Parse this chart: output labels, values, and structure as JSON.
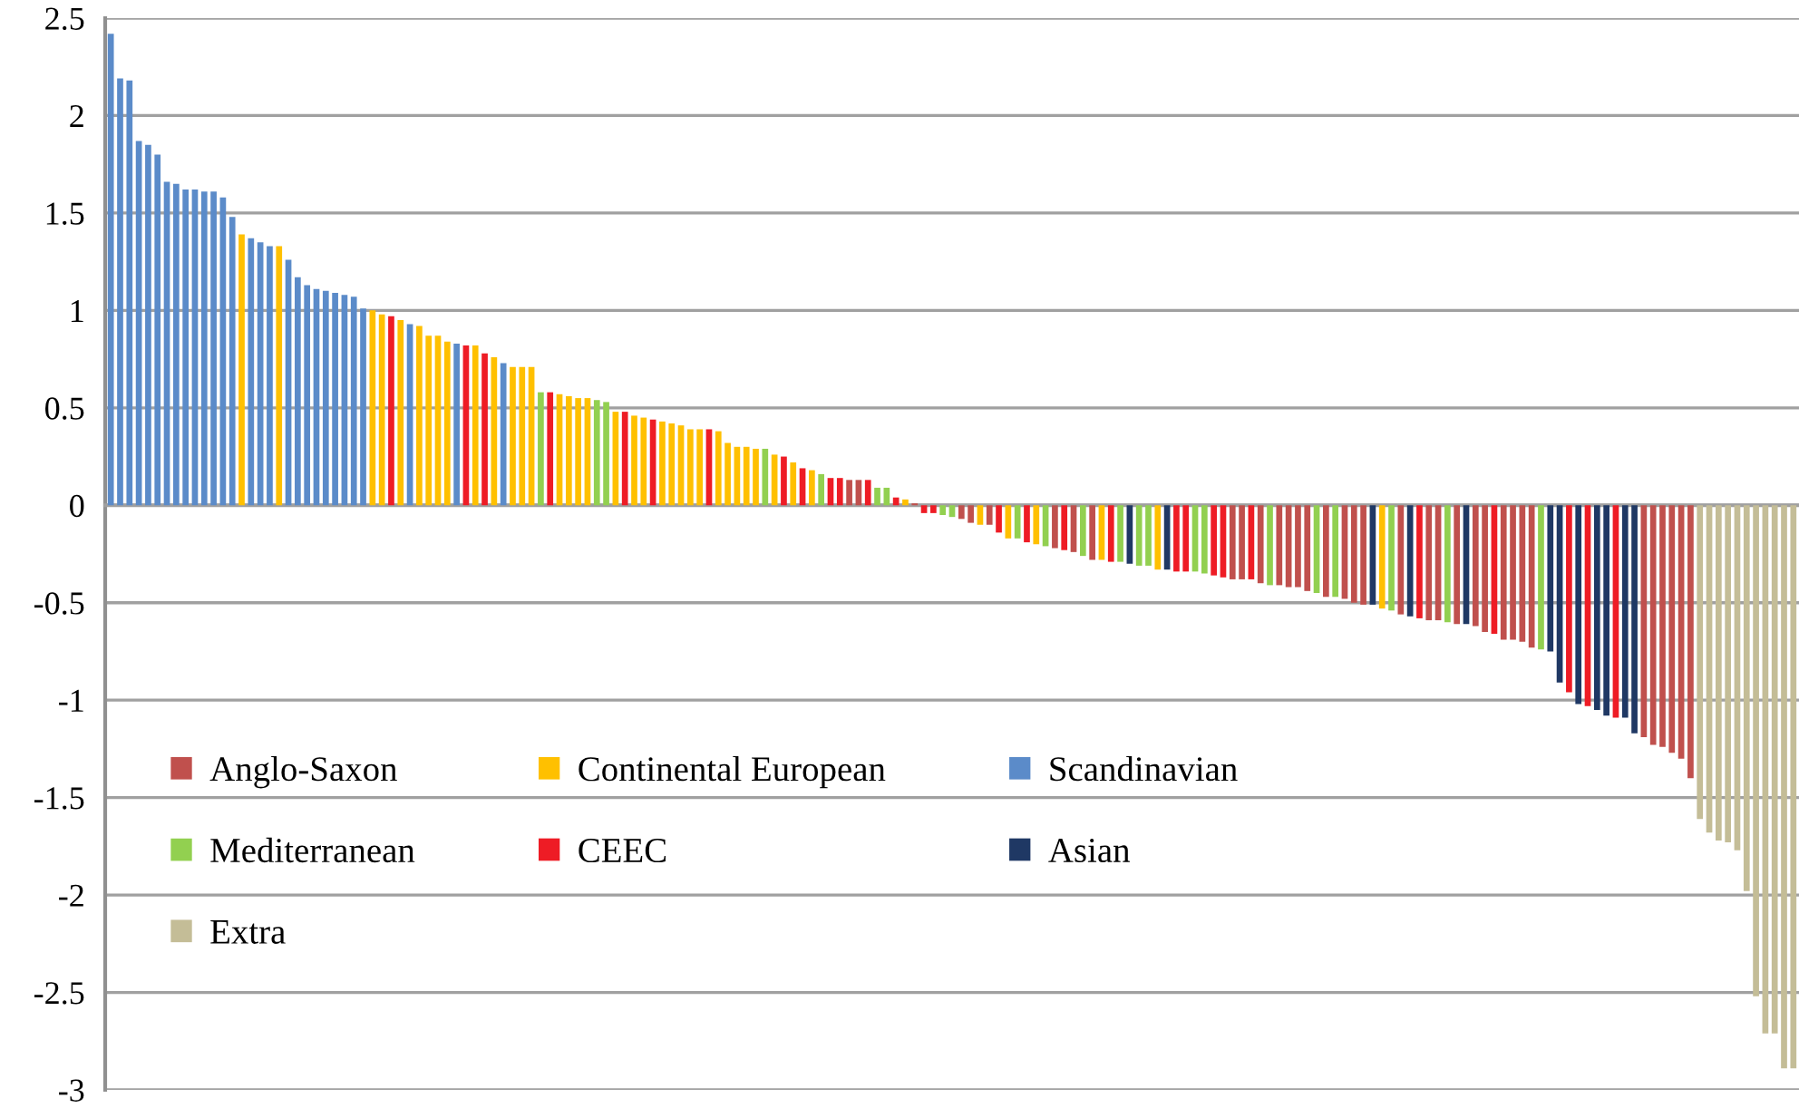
{
  "chart_data": {
    "type": "bar",
    "categories": [
      null,
      null,
      null,
      null,
      null,
      null,
      null,
      null,
      null,
      null,
      null,
      null,
      null,
      null,
      null,
      null,
      null,
      null,
      null,
      null,
      null,
      null,
      null,
      null,
      null,
      null,
      null,
      null,
      null,
      null,
      null,
      null,
      null,
      null,
      null,
      null,
      null,
      null,
      null,
      null,
      null,
      null,
      null,
      null,
      null,
      null,
      null,
      null,
      null,
      null,
      null,
      null,
      null,
      null,
      null,
      null,
      null,
      null,
      null,
      null,
      null,
      null,
      null,
      null,
      null,
      null,
      null,
      null,
      null,
      null,
      null,
      null,
      null,
      null,
      null,
      null,
      null,
      null,
      null,
      null,
      null,
      null,
      null,
      null,
      null,
      null,
      null,
      null,
      null,
      null,
      null,
      null,
      null,
      null,
      null,
      null,
      null,
      null,
      null,
      null,
      null,
      null,
      null,
      null,
      null,
      null,
      null,
      null,
      null,
      null,
      null,
      null,
      null,
      null,
      null,
      null,
      null,
      null,
      null,
      null,
      null,
      null,
      null,
      null,
      null,
      null,
      null,
      null,
      null,
      null,
      null,
      null,
      null,
      null,
      null,
      null,
      null,
      null,
      null,
      null,
      null,
      null,
      null,
      null,
      null,
      null,
      null,
      null,
      null,
      null,
      null,
      null,
      null,
      null,
      null,
      null,
      null,
      null,
      null,
      null,
      null,
      null,
      null,
      null,
      null,
      null,
      null,
      null,
      null,
      null,
      null,
      null,
      null,
      null,
      null,
      null,
      null,
      null,
      null,
      null,
      null
    ],
    "series": [
      {
        "name": "Anglo-Saxon",
        "color": "#c0504d",
        "values": [
          null,
          null,
          null,
          null,
          null,
          null,
          null,
          null,
          null,
          null,
          null,
          null,
          null,
          null,
          null,
          null,
          null,
          null,
          null,
          null,
          null,
          null,
          null,
          null,
          null,
          null,
          null,
          null,
          null,
          null,
          null,
          null,
          null,
          null,
          null,
          null,
          null,
          null,
          null,
          null,
          null,
          null,
          null,
          null,
          null,
          null,
          null,
          null,
          null,
          null,
          null,
          null,
          null,
          null,
          null,
          null,
          null,
          null,
          null,
          null,
          null,
          null,
          null,
          null,
          null,
          null,
          null,
          null,
          null,
          null,
          null,
          null,
          null,
          null,
          null,
          null,
          null,
          null,
          null,
          0.13,
          0.13,
          null,
          null,
          null,
          null,
          null,
          0.01,
          null,
          null,
          null,
          null,
          -0.07,
          -0.09,
          null,
          -0.1,
          null,
          null,
          null,
          null,
          null,
          null,
          -0.22,
          null,
          -0.24,
          null,
          -0.28,
          null,
          null,
          null,
          null,
          null,
          null,
          null,
          null,
          null,
          null,
          null,
          null,
          null,
          null,
          -0.38,
          -0.38,
          null,
          -0.4,
          null,
          -0.41,
          -0.42,
          -0.42,
          -0.44,
          null,
          -0.47,
          null,
          -0.48,
          -0.5,
          -0.51,
          null,
          null,
          null,
          -0.56,
          null,
          null,
          -0.59,
          -0.59,
          null,
          -0.61,
          null,
          -0.62,
          -0.65,
          null,
          -0.69,
          -0.69,
          -0.7,
          -0.73,
          null,
          null,
          null,
          null,
          null,
          null,
          null,
          null,
          null,
          null,
          null,
          -1.19,
          -1.23,
          -1.24,
          -1.27,
          -1.3,
          -1.4,
          null,
          null,
          null,
          null,
          null,
          null,
          null,
          null,
          null,
          null,
          null
        ]
      },
      {
        "name": "Continental European",
        "color": "#ffc000",
        "values": [
          null,
          null,
          null,
          null,
          null,
          null,
          null,
          null,
          null,
          null,
          null,
          null,
          null,
          null,
          1.39,
          null,
          null,
          null,
          1.33,
          null,
          null,
          null,
          null,
          null,
          null,
          null,
          null,
          null,
          1.0,
          0.98,
          null,
          0.95,
          null,
          0.92,
          0.87,
          0.87,
          0.84,
          null,
          null,
          0.82,
          null,
          0.76,
          null,
          0.71,
          0.71,
          0.71,
          null,
          null,
          0.57,
          0.56,
          0.55,
          0.55,
          null,
          null,
          0.48,
          null,
          0.46,
          0.45,
          null,
          0.43,
          0.42,
          0.41,
          0.39,
          0.39,
          null,
          0.38,
          0.32,
          0.3,
          0.3,
          0.29,
          null,
          0.26,
          null,
          0.22,
          null,
          0.18,
          null,
          null,
          null,
          null,
          null,
          null,
          null,
          null,
          null,
          0.03,
          null,
          null,
          null,
          null,
          null,
          null,
          null,
          -0.1,
          null,
          null,
          -0.17,
          null,
          null,
          -0.2,
          null,
          null,
          null,
          null,
          null,
          null,
          -0.28,
          null,
          null,
          null,
          null,
          null,
          -0.33,
          null,
          null,
          null,
          null,
          null,
          null,
          null,
          null,
          null,
          null,
          null,
          null,
          null,
          null,
          null,
          null,
          null,
          null,
          null,
          null,
          null,
          null,
          null,
          -0.53,
          null,
          null,
          null,
          null,
          null,
          null,
          null,
          null,
          null,
          null,
          null,
          null,
          null,
          null,
          null,
          null,
          null,
          null,
          null,
          null,
          null,
          null,
          null,
          null,
          null,
          null,
          null,
          null,
          null,
          null,
          null,
          null,
          null,
          null,
          null,
          null,
          null,
          null,
          null,
          null,
          null,
          null,
          null,
          null
        ]
      },
      {
        "name": "Scandinavian",
        "color": "#5b8bc9",
        "values": [
          2.42,
          2.19,
          2.18,
          1.87,
          1.85,
          1.8,
          1.66,
          1.65,
          1.62,
          1.62,
          1.61,
          1.61,
          1.58,
          1.48,
          null,
          1.37,
          1.35,
          1.33,
          null,
          1.26,
          1.17,
          1.13,
          1.11,
          1.1,
          1.09,
          1.08,
          1.07,
          1.01,
          null,
          null,
          null,
          null,
          0.93,
          null,
          null,
          null,
          null,
          0.83,
          null,
          null,
          null,
          null,
          0.73,
          null,
          null,
          null,
          null,
          null,
          null,
          null,
          null,
          null,
          null,
          null,
          null,
          null,
          null,
          null,
          null,
          null,
          null,
          null,
          null,
          null,
          null,
          null,
          null,
          null,
          null,
          null,
          null,
          null,
          null,
          null,
          null,
          null,
          null,
          null,
          null,
          null,
          null,
          null,
          null,
          null,
          null,
          null,
          null,
          null,
          null,
          null,
          null,
          null,
          null,
          null,
          null,
          null,
          null,
          null,
          null,
          null,
          null,
          null,
          null,
          null,
          null,
          null,
          null,
          null,
          null,
          null,
          null,
          null,
          null,
          null,
          null,
          null,
          null,
          null,
          null,
          null,
          null,
          null,
          null,
          null,
          null,
          null,
          null,
          null,
          null,
          null,
          null,
          null,
          null,
          null,
          null,
          null,
          null,
          null,
          null,
          null,
          null,
          null,
          null,
          null,
          null,
          null,
          null,
          null,
          null,
          null,
          null,
          null,
          null,
          null,
          null,
          null,
          null,
          null,
          null,
          null,
          null,
          null,
          null,
          null,
          null,
          null,
          null,
          null,
          null,
          null,
          null,
          null,
          null,
          null,
          null,
          null,
          null,
          null,
          null,
          null,
          null
        ]
      },
      {
        "name": "Mediterranean",
        "color": "#92d050",
        "values": [
          null,
          null,
          null,
          null,
          null,
          null,
          null,
          null,
          null,
          null,
          null,
          null,
          null,
          null,
          null,
          null,
          null,
          null,
          null,
          null,
          null,
          null,
          null,
          null,
          null,
          null,
          null,
          null,
          null,
          null,
          null,
          null,
          null,
          null,
          null,
          null,
          null,
          null,
          null,
          null,
          null,
          null,
          null,
          null,
          null,
          null,
          0.58,
          null,
          null,
          null,
          null,
          null,
          0.54,
          0.53,
          null,
          null,
          null,
          null,
          null,
          null,
          null,
          null,
          null,
          null,
          null,
          null,
          null,
          null,
          null,
          null,
          0.29,
          null,
          null,
          null,
          null,
          null,
          0.16,
          null,
          null,
          null,
          null,
          null,
          0.09,
          0.09,
          null,
          null,
          null,
          null,
          null,
          -0.05,
          -0.06,
          null,
          null,
          null,
          null,
          null,
          null,
          -0.17,
          null,
          null,
          -0.21,
          null,
          null,
          null,
          -0.26,
          null,
          null,
          null,
          -0.29,
          null,
          -0.31,
          -0.31,
          null,
          null,
          null,
          null,
          -0.34,
          -0.35,
          null,
          null,
          null,
          null,
          null,
          null,
          -0.41,
          null,
          null,
          null,
          null,
          -0.45,
          null,
          -0.47,
          null,
          null,
          null,
          null,
          null,
          -0.54,
          null,
          null,
          null,
          null,
          null,
          -0.6,
          null,
          null,
          null,
          null,
          null,
          null,
          null,
          null,
          null,
          -0.74,
          null,
          null,
          null,
          null,
          null,
          null,
          null,
          null,
          null,
          null,
          null,
          null,
          null,
          null,
          null,
          null,
          null,
          null,
          null,
          null,
          null,
          null,
          null,
          null,
          null,
          null,
          null
        ]
      },
      {
        "name": "CEEC",
        "color": "#ee1c25",
        "values": [
          null,
          null,
          null,
          null,
          null,
          null,
          null,
          null,
          null,
          null,
          null,
          null,
          null,
          null,
          null,
          null,
          null,
          null,
          null,
          null,
          null,
          null,
          null,
          null,
          null,
          null,
          null,
          null,
          null,
          null,
          0.97,
          null,
          null,
          null,
          null,
          null,
          null,
          null,
          0.82,
          null,
          0.78,
          null,
          null,
          null,
          null,
          null,
          null,
          0.58,
          null,
          null,
          null,
          null,
          null,
          null,
          null,
          0.48,
          null,
          null,
          0.44,
          null,
          null,
          null,
          null,
          null,
          0.39,
          null,
          null,
          null,
          null,
          null,
          null,
          null,
          0.25,
          null,
          0.19,
          null,
          null,
          0.14,
          0.14,
          null,
          null,
          0.13,
          null,
          null,
          0.04,
          null,
          null,
          -0.04,
          -0.04,
          null,
          null,
          null,
          null,
          null,
          null,
          -0.14,
          null,
          null,
          -0.19,
          null,
          null,
          null,
          -0.23,
          null,
          null,
          null,
          null,
          -0.29,
          null,
          null,
          null,
          null,
          null,
          null,
          -0.34,
          -0.34,
          null,
          null,
          -0.36,
          -0.37,
          null,
          null,
          -0.38,
          null,
          null,
          null,
          null,
          null,
          null,
          null,
          null,
          null,
          null,
          null,
          null,
          null,
          null,
          null,
          null,
          null,
          -0.58,
          null,
          null,
          null,
          null,
          null,
          null,
          null,
          -0.66,
          null,
          null,
          null,
          null,
          null,
          null,
          null,
          -0.96,
          null,
          -1.03,
          null,
          null,
          -1.09,
          null,
          null,
          null,
          null,
          null,
          null,
          null,
          null,
          null,
          null,
          null,
          null,
          null,
          null,
          null,
          null,
          null,
          null,
          null
        ]
      },
      {
        "name": "Asian",
        "color": "#1f3864",
        "values": [
          null,
          null,
          null,
          null,
          null,
          null,
          null,
          null,
          null,
          null,
          null,
          null,
          null,
          null,
          null,
          null,
          null,
          null,
          null,
          null,
          null,
          null,
          null,
          null,
          null,
          null,
          null,
          null,
          null,
          null,
          null,
          null,
          null,
          null,
          null,
          null,
          null,
          null,
          null,
          null,
          null,
          null,
          null,
          null,
          null,
          null,
          null,
          null,
          null,
          null,
          null,
          null,
          null,
          null,
          null,
          null,
          null,
          null,
          null,
          null,
          null,
          null,
          null,
          null,
          null,
          null,
          null,
          null,
          null,
          null,
          null,
          null,
          null,
          null,
          null,
          null,
          null,
          null,
          null,
          null,
          null,
          null,
          null,
          null,
          null,
          null,
          null,
          null,
          null,
          null,
          null,
          null,
          null,
          null,
          null,
          null,
          null,
          null,
          null,
          null,
          null,
          null,
          null,
          null,
          null,
          null,
          null,
          null,
          null,
          -0.3,
          null,
          null,
          null,
          -0.33,
          null,
          null,
          null,
          null,
          null,
          null,
          null,
          null,
          null,
          null,
          null,
          null,
          null,
          null,
          null,
          null,
          null,
          null,
          null,
          null,
          null,
          -0.51,
          null,
          null,
          null,
          -0.57,
          null,
          null,
          null,
          null,
          null,
          -0.61,
          null,
          null,
          null,
          null,
          null,
          null,
          null,
          null,
          -0.75,
          -0.91,
          null,
          -1.02,
          null,
          -1.05,
          -1.08,
          null,
          -1.09,
          -1.17,
          null,
          null,
          null,
          null,
          null,
          null,
          null,
          null,
          null,
          null,
          null,
          null,
          null,
          null,
          null,
          null,
          null
        ]
      },
      {
        "name": "Extra",
        "color": "#c4bd97",
        "values": [
          null,
          null,
          null,
          null,
          null,
          null,
          null,
          null,
          null,
          null,
          null,
          null,
          null,
          null,
          null,
          null,
          null,
          null,
          null,
          null,
          null,
          null,
          null,
          null,
          null,
          null,
          null,
          null,
          null,
          null,
          null,
          null,
          null,
          null,
          null,
          null,
          null,
          null,
          null,
          null,
          null,
          null,
          null,
          null,
          null,
          null,
          null,
          null,
          null,
          null,
          null,
          null,
          null,
          null,
          null,
          null,
          null,
          null,
          null,
          null,
          null,
          null,
          null,
          null,
          null,
          null,
          null,
          null,
          null,
          null,
          null,
          null,
          null,
          null,
          null,
          null,
          null,
          null,
          null,
          null,
          null,
          null,
          null,
          null,
          null,
          null,
          null,
          null,
          null,
          null,
          null,
          null,
          null,
          null,
          null,
          null,
          null,
          null,
          null,
          null,
          null,
          null,
          null,
          null,
          null,
          null,
          null,
          null,
          null,
          null,
          null,
          null,
          null,
          null,
          null,
          null,
          null,
          null,
          null,
          null,
          null,
          null,
          null,
          null,
          null,
          null,
          null,
          null,
          null,
          null,
          null,
          null,
          null,
          null,
          null,
          null,
          null,
          null,
          null,
          null,
          null,
          null,
          null,
          null,
          null,
          null,
          null,
          null,
          null,
          null,
          null,
          null,
          null,
          null,
          null,
          null,
          null,
          null,
          null,
          null,
          null,
          null,
          null,
          null,
          null,
          null,
          null,
          null,
          null,
          null,
          -1.61,
          -1.68,
          -1.72,
          -1.73,
          -1.77,
          -1.98,
          -2.52,
          -2.71,
          -2.71,
          -2.89,
          -2.89
        ]
      }
    ],
    "ylim": [
      -3,
      2.5
    ],
    "yticks": [
      -3,
      -2.5,
      -2,
      -1.5,
      -1,
      -0.5,
      0,
      0.5,
      1,
      1.5,
      2,
      2.5
    ],
    "grid": "y",
    "legend": "bottom left",
    "tick_labels": "y"
  }
}
